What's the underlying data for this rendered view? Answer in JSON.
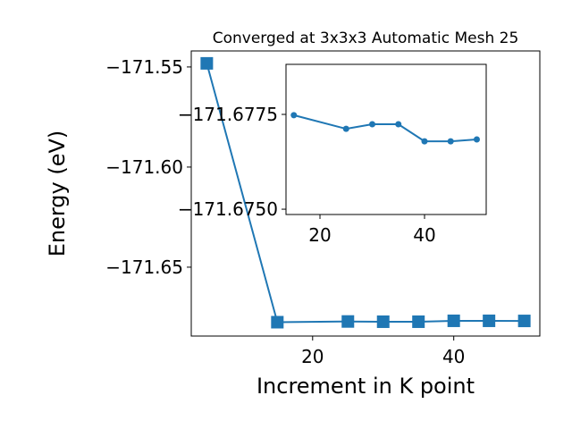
{
  "chart_data": [
    {
      "type": "line",
      "title": "Converged at 3x3x3 Automatic Mesh 25",
      "xlabel": "Increment in K point",
      "ylabel": "Energy (eV)",
      "x": [
        5,
        15,
        25,
        30,
        35,
        40,
        45,
        50
      ],
      "series": [
        {
          "color": "#1f77b4",
          "marker": "square",
          "values": [
            -171.5482,
            -171.67748,
            -171.67712,
            -171.67724,
            -171.67724,
            -171.67679,
            -171.67679,
            -171.67684
          ]
        }
      ],
      "xlim": [
        2.8,
        52.2
      ],
      "ylim": [
        -171.6844,
        -171.542
      ],
      "xticks": [
        20,
        40
      ],
      "yticks": [
        {
          "value": -171.55,
          "label": "−171.55"
        },
        {
          "value": -171.6,
          "label": "−171.60"
        },
        {
          "value": -171.65,
          "label": "−171.65"
        }
      ]
    },
    {
      "type": "line",
      "x": [
        15,
        25,
        30,
        35,
        40,
        45,
        50
      ],
      "series": [
        {
          "color": "#1f77b4",
          "marker": "circle",
          "values": [
            -171.67748,
            -171.67712,
            -171.67724,
            -171.67724,
            -171.67679,
            -171.67679,
            -171.67684
          ]
        }
      ],
      "xlim": [
        13.5,
        51.8
      ],
      "ylim": [
        -171.67486,
        -171.67882
      ],
      "xticks": [
        20,
        40
      ],
      "yticks": [
        {
          "value": -171.6775,
          "label": "−171.6775"
        },
        {
          "value": -171.675,
          "label": "−171.6750"
        }
      ]
    }
  ]
}
